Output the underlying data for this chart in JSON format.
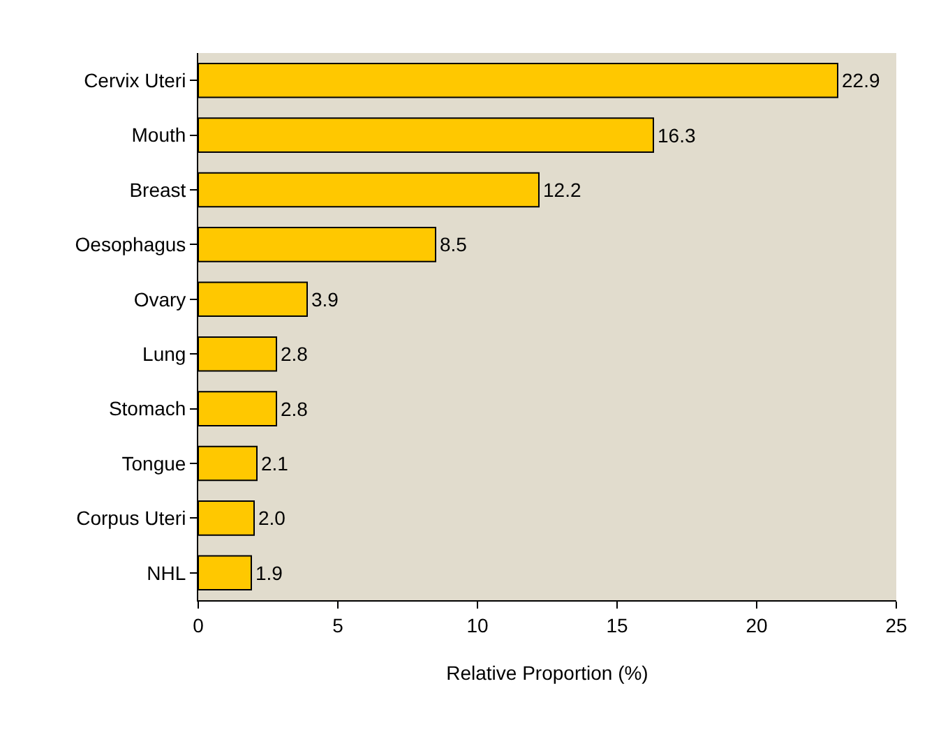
{
  "chart_data": {
    "type": "bar",
    "orientation": "horizontal",
    "xlabel": "Relative Proportion (%)",
    "categories": [
      "Cervix Uteri",
      "Mouth",
      "Breast",
      "Oesophagus",
      "Ovary",
      "Lung",
      "Stomach",
      "Tongue",
      "Corpus Uteri",
      "NHL"
    ],
    "values": [
      22.9,
      16.3,
      12.2,
      8.5,
      3.9,
      2.8,
      2.8,
      2.1,
      2.0,
      1.9
    ],
    "color": "#ffc800",
    "value_labels": [
      "22.9",
      "16.3",
      "12.2",
      "8.5",
      "3.9",
      "2.8",
      "2.8",
      "2.1",
      "2.0",
      "1.9"
    ],
    "xlim": [
      0,
      25
    ],
    "xticks": [
      0,
      5,
      10,
      15,
      20,
      25
    ]
  }
}
